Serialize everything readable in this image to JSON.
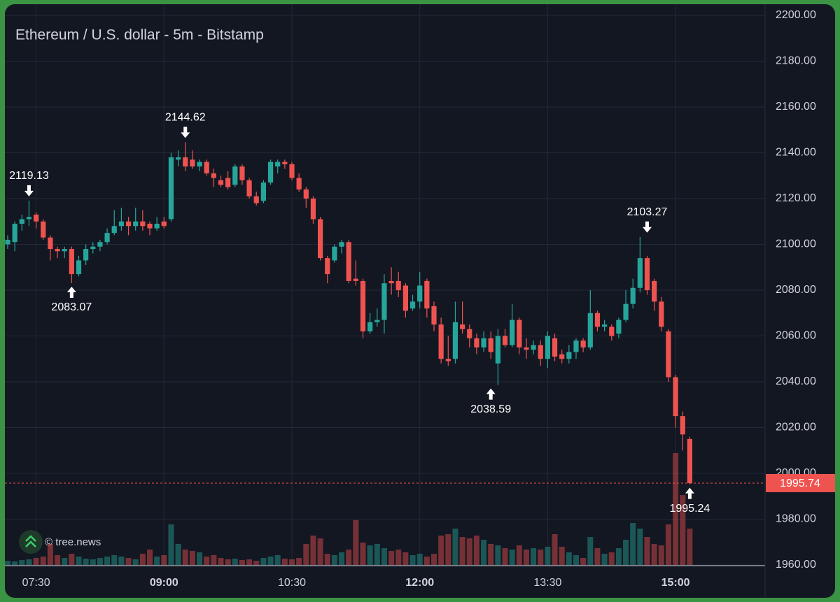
{
  "chart_data": {
    "type": "candlestick",
    "title": "Ethereum / U.S. dollar - 5m - Bitstamp",
    "watermark": "© tree.news",
    "x": [
      "07:10",
      "07:15",
      "07:20",
      "07:25",
      "07:30",
      "07:35",
      "07:40",
      "07:45",
      "07:50",
      "07:55",
      "08:00",
      "08:05",
      "08:10",
      "08:15",
      "08:20",
      "08:25",
      "08:30",
      "08:35",
      "08:40",
      "08:45",
      "08:50",
      "08:55",
      "09:00",
      "09:05",
      "09:10",
      "09:15",
      "09:20",
      "09:25",
      "09:30",
      "09:35",
      "09:40",
      "09:45",
      "09:50",
      "09:55",
      "10:00",
      "10:05",
      "10:10",
      "10:15",
      "10:20",
      "10:25",
      "10:30",
      "10:35",
      "10:40",
      "10:45",
      "10:50",
      "10:55",
      "11:00",
      "11:05",
      "11:10",
      "11:15",
      "11:20",
      "11:25",
      "11:30",
      "11:35",
      "11:40",
      "11:45",
      "11:50",
      "11:55",
      "12:00",
      "12:05",
      "12:10",
      "12:15",
      "12:20",
      "12:25",
      "12:30",
      "12:35",
      "12:40",
      "12:45",
      "12:50",
      "12:55",
      "13:00",
      "13:05",
      "13:10",
      "13:15",
      "13:20",
      "13:25",
      "13:30",
      "13:35",
      "13:40",
      "13:45",
      "13:50",
      "13:55",
      "14:00",
      "14:05",
      "14:10",
      "14:15",
      "14:20",
      "14:25",
      "14:30",
      "14:35",
      "14:40",
      "14:45",
      "14:50",
      "14:55",
      "15:00",
      "15:05",
      "15:10"
    ],
    "open": [
      2100,
      2101,
      2109,
      2111,
      2113,
      2110,
      2103,
      2098,
      2097,
      2098,
      2087,
      2093,
      2098,
      2099,
      2101,
      2105,
      2108,
      2110,
      2108,
      2110,
      2109,
      2107,
      2110,
      2111,
      2137,
      2138,
      2137,
      2134,
      2136,
      2131,
      2128,
      2129,
      2126,
      2134,
      2128,
      2121,
      2119,
      2127,
      2134,
      2136,
      2135,
      2129,
      2124,
      2120,
      2111,
      2094,
      2093,
      2099,
      2101,
      2085,
      2084,
      2062,
      2066,
      2067,
      2084,
      2084,
      2082,
      2072,
      2075,
      2084,
      2073,
      2065,
      2050,
      2050,
      2065,
      2063,
      2059,
      2055,
      2059,
      2048,
      2060,
      2056,
      2067,
      2055,
      2054,
      2056,
      2050,
      2059,
      2052,
      2050,
      2053,
      2058,
      2055,
      2070,
      2064,
      2064,
      2061,
      2067,
      2074,
      2081,
      2094,
      2084,
      2075,
      2062,
      2042,
      2025,
      2015
    ],
    "high": [
      2104,
      2110,
      2113,
      2119.13,
      2114,
      2111,
      2104,
      2099,
      2099,
      2099,
      2095,
      2100,
      2101,
      2102,
      2107,
      2115,
      2116,
      2112,
      2116,
      2115,
      2110,
      2112,
      2112,
      2140,
      2141,
      2144.62,
      2141,
      2137,
      2137,
      2133,
      2130,
      2132,
      2135,
      2135,
      2129,
      2123,
      2128,
      2137,
      2137,
      2137,
      2136,
      2131,
      2125,
      2121,
      2112,
      2095,
      2100,
      2102,
      2102,
      2093,
      2085,
      2070,
      2072,
      2087,
      2090,
      2088,
      2083,
      2078,
      2088,
      2085,
      2075,
      2068,
      2060,
      2075,
      2075,
      2065,
      2061,
      2062,
      2062,
      2063,
      2063,
      2074,
      2068,
      2059,
      2058,
      2058,
      2062,
      2061,
      2054,
      2056,
      2059,
      2059,
      2080,
      2071,
      2067,
      2065,
      2068,
      2080,
      2085,
      2103.27,
      2095,
      2085,
      2077,
      2063,
      2043,
      2027,
      2016
    ],
    "low": [
      2098,
      2097,
      2106,
      2108,
      2107,
      2102,
      2093,
      2094,
      2094,
      2083.07,
      2086,
      2091,
      2096,
      2097,
      2100,
      2104,
      2106,
      2104,
      2106,
      2106,
      2104,
      2106,
      2107,
      2110,
      2134,
      2132,
      2133,
      2132,
      2130,
      2125,
      2125,
      2124,
      2125,
      2126,
      2120,
      2117,
      2118,
      2126,
      2131,
      2133,
      2128,
      2123,
      2116,
      2109,
      2093,
      2083,
      2092,
      2096,
      2083,
      2082,
      2059,
      2061,
      2064,
      2061,
      2078,
      2077,
      2068,
      2071,
      2072,
      2068,
      2062,
      2048,
      2047,
      2048,
      2061,
      2055,
      2052,
      2053,
      2050,
      2038.59,
      2055,
      2055,
      2052,
      2050,
      2052,
      2047,
      2046,
      2049,
      2048,
      2048,
      2050,
      2053,
      2054,
      2062,
      2062,
      2058,
      2059,
      2066,
      2072,
      2079,
      2078,
      2071,
      2062,
      2040,
      2020,
      2010,
      1995.24
    ],
    "close": [
      2102,
      2109,
      2111,
      2112,
      2110,
      2103,
      2098,
      2097,
      2098,
      2087,
      2093,
      2098,
      2099,
      2101,
      2105,
      2108,
      2110,
      2108,
      2110,
      2108,
      2107,
      2109,
      2108,
      2138,
      2138,
      2134,
      2134,
      2136,
      2131,
      2129,
      2126,
      2125,
      2134,
      2128,
      2121,
      2118,
      2127,
      2136,
      2136,
      2135,
      2129,
      2124,
      2120,
      2111,
      2094,
      2087,
      2099,
      2101,
      2084,
      2084,
      2062,
      2066,
      2067,
      2083,
      2083,
      2080,
      2071,
      2075,
      2082,
      2072,
      2065,
      2050,
      2049,
      2066,
      2063,
      2059,
      2055,
      2059,
      2053,
      2060,
      2056,
      2067,
      2055,
      2054,
      2056,
      2050,
      2060,
      2051,
      2050,
      2053,
      2058,
      2055,
      2070,
      2064,
      2065,
      2060,
      2067,
      2074,
      2081,
      2094,
      2080,
      2075,
      2064,
      2042,
      2025,
      2017,
      1995.74
    ],
    "volume": [
      6,
      5,
      7,
      8,
      10,
      12,
      30,
      14,
      10,
      16,
      12,
      9,
      8,
      10,
      12,
      14,
      12,
      10,
      8,
      16,
      22,
      12,
      14,
      58,
      30,
      22,
      20,
      18,
      12,
      14,
      10,
      8,
      9,
      7,
      8,
      6,
      10,
      12,
      14,
      9,
      8,
      10,
      30,
      42,
      38,
      16,
      14,
      18,
      22,
      64,
      32,
      28,
      30,
      24,
      20,
      22,
      18,
      14,
      16,
      12,
      16,
      42,
      44,
      52,
      40,
      38,
      42,
      36,
      30,
      28,
      24,
      22,
      28,
      22,
      24,
      22,
      26,
      44,
      26,
      18,
      14,
      10,
      40,
      24,
      16,
      18,
      24,
      36,
      60,
      52,
      40,
      30,
      28,
      58,
      160,
      100,
      52
    ],
    "up_color": "#26a69a",
    "down_color": "#ef5350",
    "ylim": [
      1960,
      2200
    ],
    "yticks": [
      {
        "value": 2200,
        "label": "2200.00"
      },
      {
        "value": 2180,
        "label": "2180.00"
      },
      {
        "value": 2160,
        "label": "2160.00"
      },
      {
        "value": 2140,
        "label": "2140.00"
      },
      {
        "value": 2120,
        "label": "2120.00"
      },
      {
        "value": 2100,
        "label": "2100.00"
      },
      {
        "value": 2080,
        "label": "2080.00"
      },
      {
        "value": 2060,
        "label": "2060.00"
      },
      {
        "value": 2040,
        "label": "2040.00"
      },
      {
        "value": 2020,
        "label": "2020.00"
      },
      {
        "value": 2000,
        "label": "2000.00"
      },
      {
        "value": 1980,
        "label": "1980.00"
      },
      {
        "value": 1960,
        "label": "1960.00"
      }
    ],
    "xticks": [
      "07:30",
      "09:00",
      "10:30",
      "12:00",
      "13:30",
      "15:00"
    ],
    "grid": true,
    "last_price": 1995.74,
    "annotations": [
      {
        "x": "07:25",
        "value": 2119.13,
        "position": "above"
      },
      {
        "x": "07:55",
        "value": 2083.07,
        "position": "below"
      },
      {
        "x": "09:15",
        "value": 2144.62,
        "position": "above"
      },
      {
        "x": "12:50",
        "value": 2038.59,
        "position": "below"
      },
      {
        "x": "14:40",
        "value": 2103.27,
        "position": "above"
      },
      {
        "x": "15:10",
        "value": 1995.24,
        "position": "below"
      }
    ]
  }
}
